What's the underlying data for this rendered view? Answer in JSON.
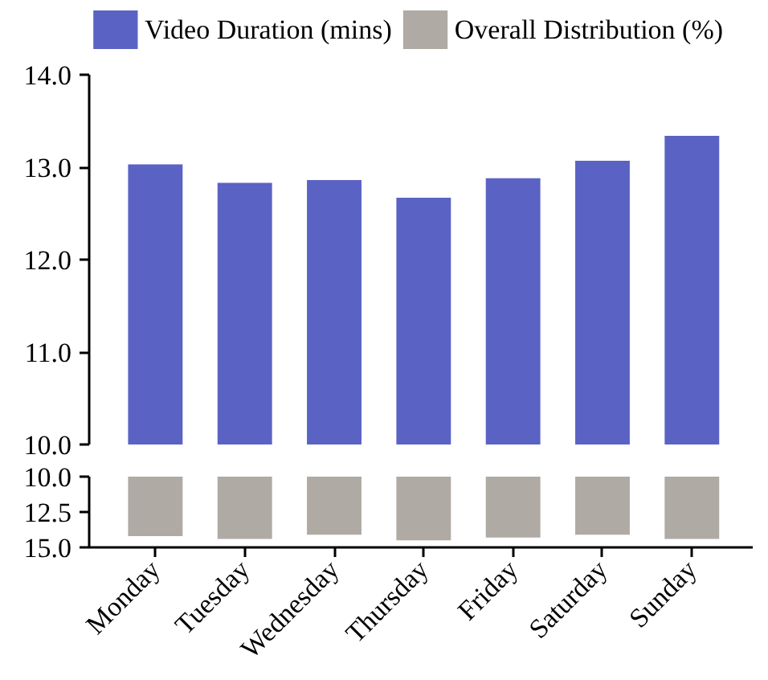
{
  "chart_data": [
    {
      "type": "bar",
      "categories": [
        null,
        null,
        null,
        null,
        null,
        null,
        null
      ],
      "series": [
        {
          "name": "Video Duration (mins)",
          "color": "#5a63c3",
          "values": [
            13.03,
            12.83,
            12.86,
            12.67,
            12.88,
            13.07,
            13.34
          ]
        }
      ],
      "ylim": [
        10,
        14
      ],
      "yticks": [
        {
          "value": 10,
          "label": "10.0"
        },
        {
          "value": 11,
          "label": "11.0"
        },
        {
          "value": 12,
          "label": "12.0"
        },
        {
          "value": 13,
          "label": "13.0"
        },
        {
          "value": 14,
          "label": "14.0"
        }
      ],
      "tick_labels": "y",
      "legend": "top"
    },
    {
      "type": "bar",
      "categories": [
        "Monday",
        "Tuesday",
        "Wednesday",
        "Thursday",
        "Friday",
        "Saturday",
        "Sunday"
      ],
      "series": [
        {
          "name": "Overall Distribution (%)",
          "color": "#afaaa3",
          "values": [
            14.2,
            14.4,
            14.1,
            14.5,
            14.3,
            14.1,
            14.4
          ]
        }
      ],
      "ylim": [
        15,
        10
      ],
      "yticks": [
        {
          "value": 10,
          "label": "10.0"
        },
        {
          "value": 12.5,
          "label": "12.5"
        },
        {
          "value": 15,
          "label": "15.0"
        }
      ],
      "legend": "top"
    }
  ]
}
